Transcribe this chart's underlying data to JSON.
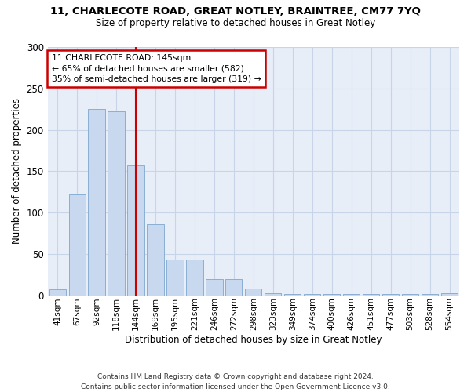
{
  "title1": "11, CHARLECOTE ROAD, GREAT NOTLEY, BRAINTREE, CM77 7YQ",
  "title2": "Size of property relative to detached houses in Great Notley",
  "xlabel": "Distribution of detached houses by size in Great Notley",
  "ylabel": "Number of detached properties",
  "bar_values": [
    7,
    122,
    225,
    222,
    157,
    86,
    43,
    43,
    19,
    19,
    8,
    2,
    1,
    1,
    1,
    1,
    1,
    1,
    1,
    1,
    2
  ],
  "bar_labels": [
    "41sqm",
    "67sqm",
    "92sqm",
    "118sqm",
    "144sqm",
    "169sqm",
    "195sqm",
    "221sqm",
    "246sqm",
    "272sqm",
    "298sqm",
    "323sqm",
    "349sqm",
    "374sqm",
    "400sqm",
    "426sqm",
    "451sqm",
    "477sqm",
    "503sqm",
    "528sqm",
    "554sqm"
  ],
  "bar_color": "#c8d8ee",
  "bar_edge_color": "#8aaed4",
  "vline_x": 4,
  "vline_color": "#cc0000",
  "annotation_text": "11 CHARLECOTE ROAD: 145sqm\n← 65% of detached houses are smaller (582)\n35% of semi-detached houses are larger (319) →",
  "annotation_box_color": "#ffffff",
  "annotation_box_edge": "#cc0000",
  "ylim": [
    0,
    300
  ],
  "yticks": [
    0,
    50,
    100,
    150,
    200,
    250,
    300
  ],
  "footnote": "Contains HM Land Registry data © Crown copyright and database right 2024.\nContains public sector information licensed under the Open Government Licence v3.0.",
  "bg_color": "#e8eef8"
}
